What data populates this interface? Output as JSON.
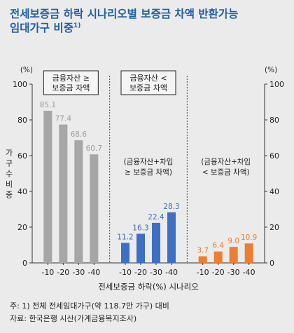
{
  "title_line1": "전세보증금 하락 시나리오별 보증금 차액 반환가능",
  "title_line2": "임대가구 비중",
  "title_sup": "1)",
  "chart_data": {
    "type": "bar",
    "unit_left": "(%)",
    "unit_right": "(%)",
    "ylabel": "가구수비중",
    "xlabel": "전세보증금 하락(%) 시나리오",
    "ylim": [
      0,
      100
    ],
    "yticks": [
      0,
      20,
      40,
      60,
      80,
      100
    ],
    "panels": [
      {
        "label_lines": [
          "금융자산 ≥",
          "보증금 차액"
        ],
        "label_boxed": true,
        "categories": [
          "-10",
          "-20",
          "-30",
          "-40"
        ],
        "values": [
          85.1,
          77.4,
          68.6,
          60.7
        ],
        "value_labels": [
          "85.1",
          "77.4",
          "68.6",
          "60.7"
        ],
        "color": "#a6a6a6",
        "label_color": "#9e9e9e"
      },
      {
        "label_lines": [
          "금융자산 <",
          "보증금 차액"
        ],
        "label_boxed": true,
        "sub_label_lines": [
          "(금융자산+차입",
          "≥ 보증금 차액)"
        ],
        "categories": [
          "-10",
          "-20",
          "-30",
          "-40"
        ],
        "values": [
          11.2,
          16.3,
          22.4,
          28.3
        ],
        "value_labels": [
          "11.2",
          "16.3",
          "22.4",
          "28.3"
        ],
        "color": "#3e6fc2",
        "label_color": "#3e6fc2"
      },
      {
        "label_lines": [],
        "label_boxed": false,
        "sub_label_lines": [
          "(금융자산+차입",
          "< 보증금 차액)"
        ],
        "categories": [
          "-10",
          "-20",
          "-30",
          "-40"
        ],
        "values": [
          3.7,
          6.4,
          9.0,
          10.9
        ],
        "value_labels": [
          "3.7",
          "6.4",
          "9.0",
          "10.9"
        ],
        "color": "#ed7d31",
        "label_color": "#ed7d31"
      }
    ],
    "grid": false
  },
  "footnotes": {
    "note": "주: 1) 전체 전세임대가구(약 118.7만 가구) 대비",
    "source": "자료: 한국은행 시산(가계금융복지조사)"
  }
}
